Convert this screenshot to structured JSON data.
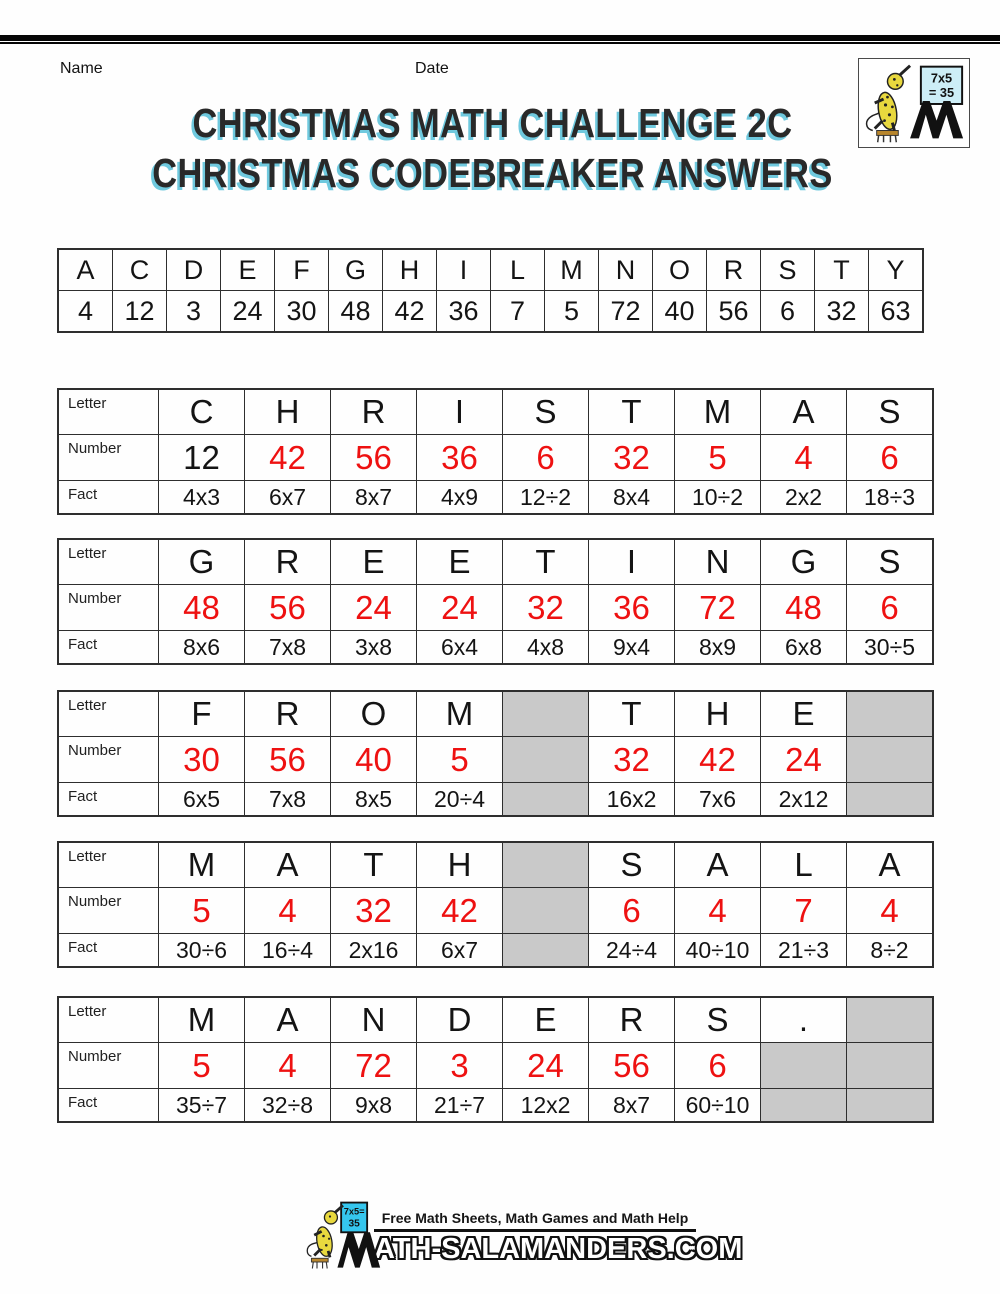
{
  "header": {
    "name_label": "Name",
    "date_label": "Date",
    "logo": {
      "sign_line1": "7x5",
      "sign_line2": "= 35"
    }
  },
  "title": {
    "line1": "CHRISTMAS MATH CHALLENGE 2C",
    "line2": "CHRISTMAS CODEBREAKER ANSWERS"
  },
  "key_table": {
    "letters": [
      "A",
      "C",
      "D",
      "E",
      "F",
      "G",
      "H",
      "I",
      "L",
      "M",
      "N",
      "O",
      "R",
      "S",
      "T",
      "Y"
    ],
    "numbers": [
      "4",
      "12",
      "3",
      "24",
      "30",
      "48",
      "42",
      "36",
      "7",
      "5",
      "72",
      "40",
      "56",
      "6",
      "32",
      "63"
    ]
  },
  "row_labels": {
    "letter": "Letter",
    "number": "Number",
    "fact": "Fact"
  },
  "puzzles": [
    {
      "cells": [
        {
          "letter": "C",
          "number": "12",
          "fact": "4x3",
          "number_black": true
        },
        {
          "letter": "H",
          "number": "42",
          "fact": "6x7"
        },
        {
          "letter": "R",
          "number": "56",
          "fact": "8x7"
        },
        {
          "letter": "I",
          "number": "36",
          "fact": "4x9"
        },
        {
          "letter": "S",
          "number": "6",
          "fact": "12÷2"
        },
        {
          "letter": "T",
          "number": "32",
          "fact": "8x4"
        },
        {
          "letter": "M",
          "number": "5",
          "fact": "10÷2"
        },
        {
          "letter": "A",
          "number": "4",
          "fact": "2x2"
        },
        {
          "letter": "S",
          "number": "6",
          "fact": "18÷3"
        }
      ]
    },
    {
      "cells": [
        {
          "letter": "G",
          "number": "48",
          "fact": "8x6"
        },
        {
          "letter": "R",
          "number": "56",
          "fact": "7x8"
        },
        {
          "letter": "E",
          "number": "24",
          "fact": "3x8"
        },
        {
          "letter": "E",
          "number": "24",
          "fact": "6x4"
        },
        {
          "letter": "T",
          "number": "32",
          "fact": "4x8"
        },
        {
          "letter": "I",
          "number": "36",
          "fact": "9x4"
        },
        {
          "letter": "N",
          "number": "72",
          "fact": "8x9"
        },
        {
          "letter": "G",
          "number": "48",
          "fact": "6x8"
        },
        {
          "letter": "S",
          "number": "6",
          "fact": "30÷5"
        }
      ]
    },
    {
      "cells": [
        {
          "letter": "F",
          "number": "30",
          "fact": "6x5"
        },
        {
          "letter": "R",
          "number": "56",
          "fact": "7x8"
        },
        {
          "letter": "O",
          "number": "40",
          "fact": "8x5"
        },
        {
          "letter": "M",
          "number": "5",
          "fact": "20÷4"
        },
        {
          "letter": null,
          "number": null,
          "fact": null
        },
        {
          "letter": "T",
          "number": "32",
          "fact": "16x2"
        },
        {
          "letter": "H",
          "number": "42",
          "fact": "7x6"
        },
        {
          "letter": "E",
          "number": "24",
          "fact": "2x12"
        },
        {
          "letter": null,
          "number": null,
          "fact": null
        }
      ]
    },
    {
      "cells": [
        {
          "letter": "M",
          "number": "5",
          "fact": "30÷6"
        },
        {
          "letter": "A",
          "number": "4",
          "fact": "16÷4"
        },
        {
          "letter": "T",
          "number": "32",
          "fact": "2x16"
        },
        {
          "letter": "H",
          "number": "42",
          "fact": "6x7"
        },
        {
          "letter": null,
          "number": null,
          "fact": null
        },
        {
          "letter": "S",
          "number": "6",
          "fact": "24÷4"
        },
        {
          "letter": "A",
          "number": "4",
          "fact": "40÷10"
        },
        {
          "letter": "L",
          "number": "7",
          "fact": "21÷3"
        },
        {
          "letter": "A",
          "number": "4",
          "fact": "8÷2"
        }
      ]
    },
    {
      "cells": [
        {
          "letter": "M",
          "number": "5",
          "fact": "35÷7"
        },
        {
          "letter": "A",
          "number": "4",
          "fact": "32÷8"
        },
        {
          "letter": "N",
          "number": "72",
          "fact": "9x8"
        },
        {
          "letter": "D",
          "number": "3",
          "fact": "21÷7"
        },
        {
          "letter": "E",
          "number": "24",
          "fact": "12x2"
        },
        {
          "letter": "R",
          "number": "56",
          "fact": "8x7"
        },
        {
          "letter": "S",
          "number": "6",
          "fact": "60÷10"
        },
        {
          "letter": ".",
          "number": null,
          "fact": null
        },
        {
          "letter": null,
          "number": null,
          "fact": null
        }
      ]
    }
  ],
  "footer": {
    "tagline": "Free Math Sheets, Math Games and Math Help",
    "site_name": "ath-salamanders.com",
    "logo_sign_line1": "7x5=",
    "logo_sign_line2": "35"
  },
  "colors": {
    "answer_red": "#ee1111",
    "blocked_gray": "#c9c9c9",
    "title_shadow": "#6fc9de"
  }
}
